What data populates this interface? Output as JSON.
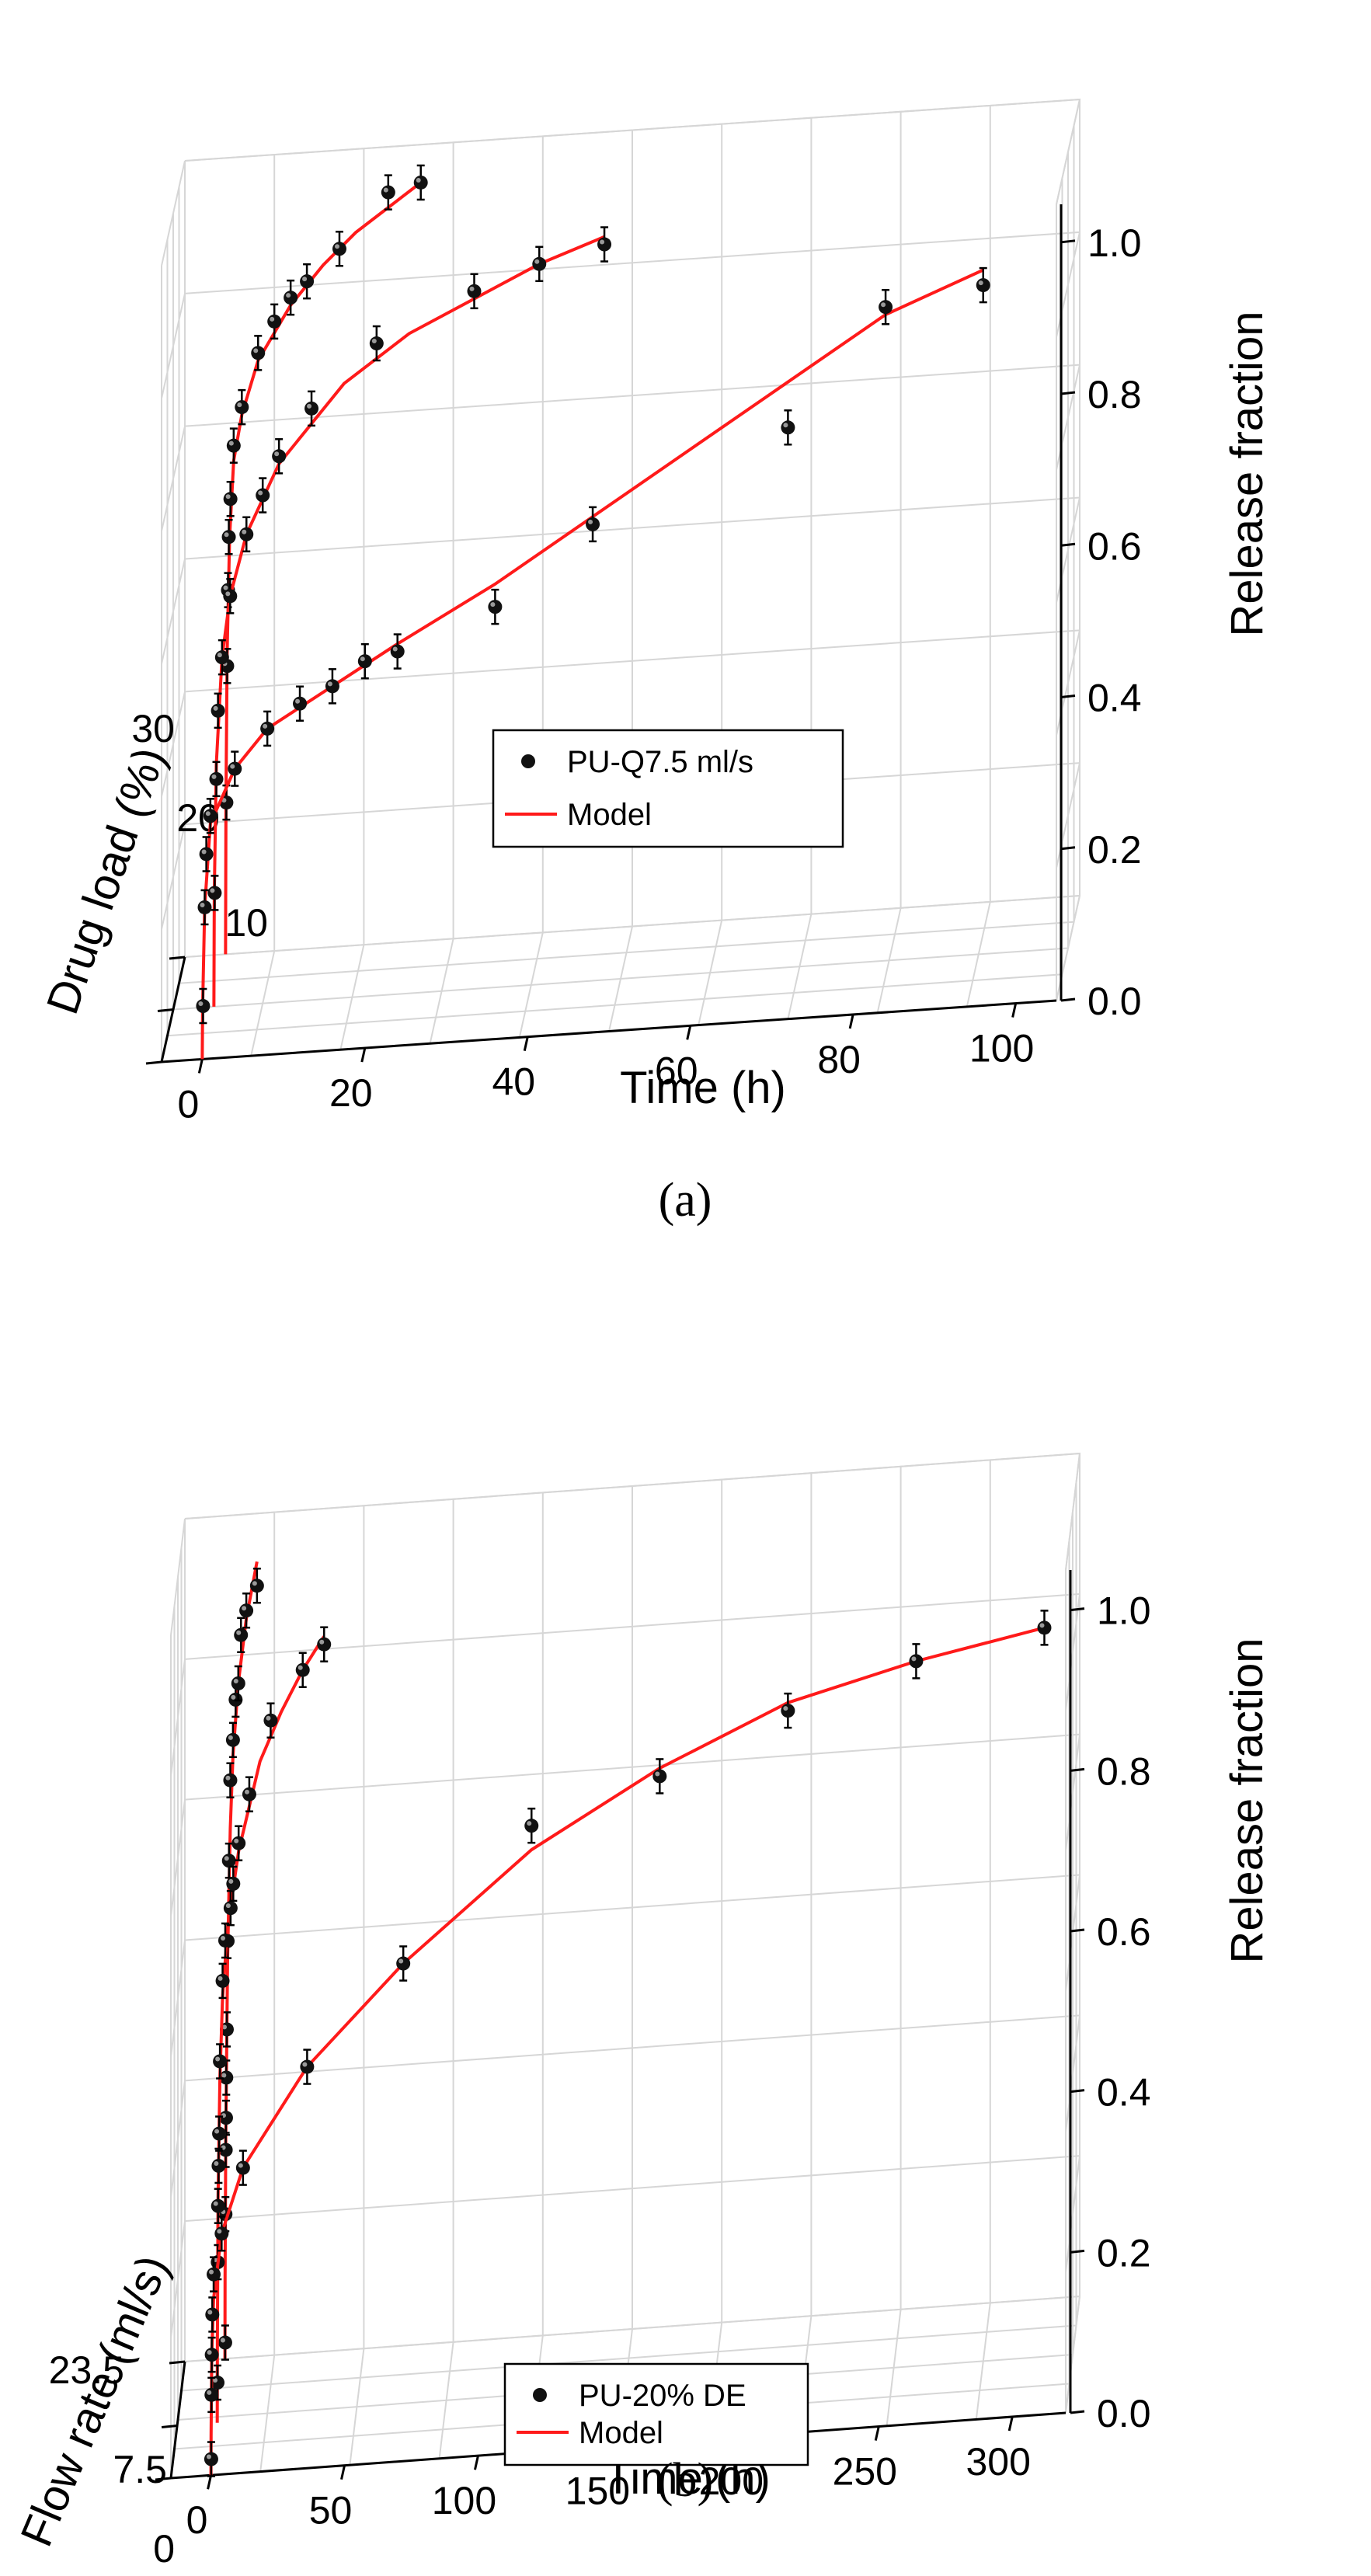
{
  "chart_data": [
    {
      "id": "a",
      "type": "scatter3d",
      "caption": "(a)",
      "xlabel": "Time (h)",
      "ylabel": "Drug load (%)",
      "zlabel": "Release fraction",
      "xlim": [
        -5,
        105
      ],
      "zlim": [
        0,
        1.05
      ],
      "x_ticks": [
        "0",
        "20",
        "40",
        "60",
        "80",
        "100"
      ],
      "x_tick_values": [
        0,
        20,
        40,
        60,
        80,
        100
      ],
      "y_ticks": [
        "30",
        "20",
        "10"
      ],
      "z_ticks": [
        "0.0",
        "0.2",
        "0.4",
        "0.6",
        "0.8",
        "1.0"
      ],
      "z_tick_values": [
        0,
        0.2,
        0.4,
        0.6,
        0.8,
        1.0
      ],
      "legend": {
        "marker_label": "PU-Q7.5 ml/s",
        "line_label": "Model"
      },
      "series": [
        {
          "name": "30",
          "points": [
            [
              0.1,
              0.2
            ],
            [
              0.2,
              0.38
            ],
            [
              0.3,
              0.48
            ],
            [
              0.4,
              0.55
            ],
            [
              0.6,
              0.6
            ],
            [
              1,
              0.67
            ],
            [
              2,
              0.72
            ],
            [
              4,
              0.79
            ],
            [
              6,
              0.83
            ],
            [
              8,
              0.86
            ],
            [
              10,
              0.88
            ],
            [
              14,
              0.92
            ],
            [
              20,
              0.99
            ],
            [
              24,
              1.0
            ]
          ],
          "model": [
            [
              0,
              0
            ],
            [
              0.05,
              0.2
            ],
            [
              0.2,
              0.4
            ],
            [
              0.5,
              0.55
            ],
            [
              1,
              0.65
            ],
            [
              2,
              0.71
            ],
            [
              4,
              0.78
            ],
            [
              8,
              0.85
            ],
            [
              12,
              0.9
            ],
            [
              16,
              0.94
            ],
            [
              20,
              0.97
            ],
            [
              24,
              1.0
            ]
          ]
        },
        {
          "name": "20",
          "points": [
            [
              0.1,
              0.15
            ],
            [
              0.3,
              0.3
            ],
            [
              0.5,
              0.39
            ],
            [
              1,
              0.46
            ],
            [
              2,
              0.54
            ],
            [
              4,
              0.62
            ],
            [
              6,
              0.67
            ],
            [
              8,
              0.72
            ],
            [
              12,
              0.78
            ],
            [
              20,
              0.86
            ],
            [
              32,
              0.92
            ],
            [
              40,
              0.95
            ],
            [
              48,
              0.97
            ]
          ],
          "model": [
            [
              0,
              0
            ],
            [
              0.05,
              0.15
            ],
            [
              0.3,
              0.32
            ],
            [
              1,
              0.46
            ],
            [
              2,
              0.54
            ],
            [
              4,
              0.62
            ],
            [
              8,
              0.71
            ],
            [
              16,
              0.81
            ],
            [
              24,
              0.87
            ],
            [
              32,
              0.91
            ],
            [
              40,
              0.95
            ],
            [
              48,
              0.98
            ]
          ]
        },
        {
          "name": "10",
          "points": [
            [
              0.1,
              0.07
            ],
            [
              0.3,
              0.2
            ],
            [
              0.5,
              0.27
            ],
            [
              1,
              0.32
            ],
            [
              4,
              0.38
            ],
            [
              8,
              0.43
            ],
            [
              12,
              0.46
            ],
            [
              16,
              0.48
            ],
            [
              20,
              0.51
            ],
            [
              24,
              0.52
            ],
            [
              36,
              0.57
            ],
            [
              48,
              0.67
            ],
            [
              72,
              0.78
            ],
            [
              84,
              0.93
            ],
            [
              96,
              0.95
            ]
          ],
          "model": [
            [
              0,
              0
            ],
            [
              0.05,
              0.07
            ],
            [
              0.3,
              0.2
            ],
            [
              1,
              0.31
            ],
            [
              4,
              0.38
            ],
            [
              8,
              0.43
            ],
            [
              16,
              0.48
            ],
            [
              24,
              0.53
            ],
            [
              36,
              0.6
            ],
            [
              48,
              0.68
            ],
            [
              60,
              0.76
            ],
            [
              72,
              0.84
            ],
            [
              84,
              0.92
            ],
            [
              96,
              0.97
            ]
          ]
        }
      ]
    },
    {
      "id": "b",
      "type": "scatter3d",
      "caption": "(b)",
      "xlabel": "Time (h)",
      "ylabel": "Flow rate (ml/s)",
      "zlabel": "Release fraction",
      "xlim": [
        -15,
        320
      ],
      "zlim": [
        0,
        1.05
      ],
      "x_ticks": [
        "0",
        "50",
        "100",
        "150",
        "200",
        "250",
        "300"
      ],
      "x_tick_values": [
        0,
        50,
        100,
        150,
        200,
        250,
        300
      ],
      "y_ticks": [
        "23.5",
        "7.5",
        "0"
      ],
      "z_ticks": [
        "0.0",
        "0.2",
        "0.4",
        "0.6",
        "0.8",
        "1.0"
      ],
      "z_tick_values": [
        0,
        0.2,
        0.4,
        0.6,
        0.8,
        1.0
      ],
      "legend": {
        "marker_label": "PU-20% DE",
        "line_label": "Model"
      },
      "series": [
        {
          "name": "23.5",
          "points": [
            [
              0.1,
              0.02
            ],
            [
              0.2,
              0.18
            ],
            [
              0.3,
              0.26
            ],
            [
              0.4,
              0.3
            ],
            [
              0.5,
              0.35
            ],
            [
              0.7,
              0.41
            ],
            [
              1,
              0.52
            ],
            [
              1.5,
              0.62
            ],
            [
              2,
              0.72
            ],
            [
              3,
              0.77
            ],
            [
              4,
              0.82
            ],
            [
              5,
              0.84
            ],
            [
              6,
              0.9
            ],
            [
              8,
              0.93
            ],
            [
              12,
              0.96
            ]
          ],
          "model": [
            [
              0,
              0
            ],
            [
              0.05,
              0.1
            ],
            [
              0.3,
              0.27
            ],
            [
              1,
              0.5
            ],
            [
              2,
              0.66
            ],
            [
              3,
              0.75
            ],
            [
              5,
              0.84
            ],
            [
              8,
              0.92
            ],
            [
              12,
              0.99
            ]
          ]
        },
        {
          "name": "7.5",
          "points": [
            [
              0.1,
              0.05
            ],
            [
              0.2,
              0.2
            ],
            [
              0.3,
              0.27
            ],
            [
              0.5,
              0.32
            ],
            [
              0.7,
              0.36
            ],
            [
              1,
              0.45
            ],
            [
              2,
              0.55
            ],
            [
              3,
              0.6
            ],
            [
              5,
              0.64
            ],
            [
              6,
              0.67
            ],
            [
              8,
              0.72
            ],
            [
              12,
              0.78
            ],
            [
              20,
              0.87
            ],
            [
              32,
              0.93
            ],
            [
              40,
              0.96
            ]
          ],
          "model": [
            [
              0,
              0
            ],
            [
              0.05,
              0.1
            ],
            [
              0.3,
              0.28
            ],
            [
              1,
              0.43
            ],
            [
              2,
              0.53
            ],
            [
              4,
              0.62
            ],
            [
              8,
              0.71
            ],
            [
              16,
              0.82
            ],
            [
              24,
              0.88
            ],
            [
              32,
              0.93
            ],
            [
              40,
              0.97
            ]
          ]
        },
        {
          "name": "0",
          "points": [
            [
              0.1,
              0.02
            ],
            [
              0.2,
              0.1
            ],
            [
              0.3,
              0.15
            ],
            [
              0.5,
              0.2
            ],
            [
              1,
              0.25
            ],
            [
              4,
              0.3
            ],
            [
              12,
              0.38
            ],
            [
              36,
              0.5
            ],
            [
              72,
              0.62
            ],
            [
              120,
              0.78
            ],
            [
              168,
              0.83
            ],
            [
              216,
              0.9
            ],
            [
              264,
              0.95
            ],
            [
              312,
              0.98
            ]
          ],
          "model": [
            [
              0,
              0
            ],
            [
              0.05,
              0.05
            ],
            [
              0.3,
              0.15
            ],
            [
              1,
              0.22
            ],
            [
              4,
              0.3
            ],
            [
              12,
              0.38
            ],
            [
              36,
              0.5
            ],
            [
              72,
              0.62
            ],
            [
              120,
              0.75
            ],
            [
              168,
              0.84
            ],
            [
              216,
              0.91
            ],
            [
              264,
              0.95
            ],
            [
              312,
              0.98
            ]
          ]
        }
      ]
    }
  ]
}
